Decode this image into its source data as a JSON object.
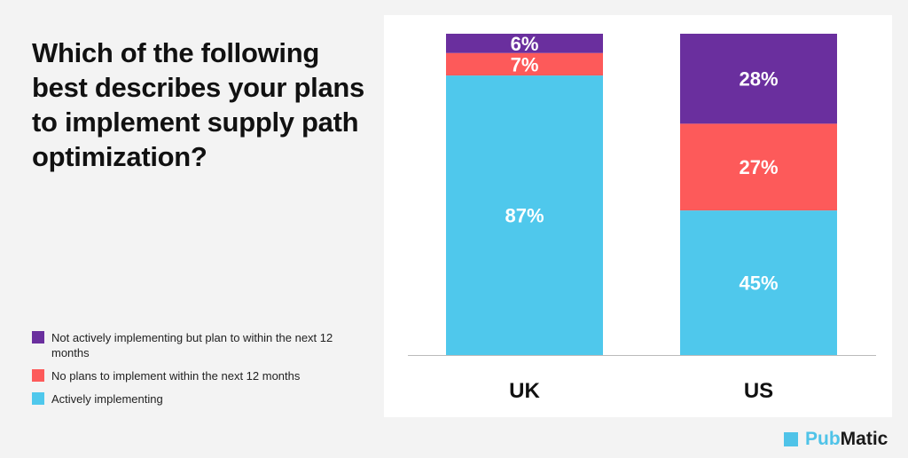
{
  "chart_data": {
    "type": "bar",
    "stacked": true,
    "title": "Which of the following best describes your plans to implement supply path optimization?",
    "categories": [
      "UK",
      "US"
    ],
    "ylim": [
      0,
      100
    ],
    "series": [
      {
        "name": "Actively implementing",
        "color": "#4fc8ec",
        "values": [
          87,
          45
        ]
      },
      {
        "name": "No plans to implement within the next 12 months",
        "color": "#fd5a5a",
        "values": [
          7,
          27
        ]
      },
      {
        "name": "Not actively implementing but plan to within the next 12 months",
        "color": "#6a2f9e",
        "values": [
          6,
          28
        ]
      }
    ],
    "legend_placement": "bottom-left"
  },
  "legend": [
    {
      "label": "Not actively implementing but plan to within the next 12 months",
      "color": "#6a2f9e"
    },
    {
      "label": "No plans to implement within the next 12 months",
      "color": "#fd5a5a"
    },
    {
      "label": "Actively implementing",
      "color": "#4fc8ec"
    }
  ],
  "brand": {
    "pub": "Pub",
    "matic": "Matic"
  }
}
